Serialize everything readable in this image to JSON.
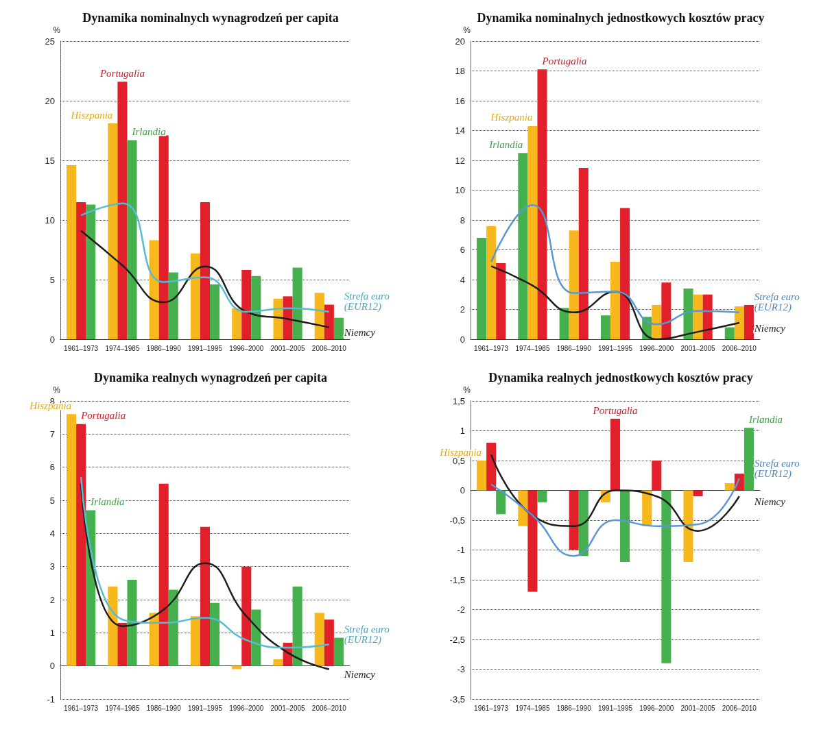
{
  "chart_data": [
    {
      "type": "bar",
      "title": "Dynamika nominalnych wynagrodzeń per capita",
      "ylabel": "%",
      "categories": [
        "1961–1973",
        "1974–1985",
        "1986–1990",
        "1991–1995",
        "1996–2000",
        "2001–2005",
        "2006–2010"
      ],
      "ylim": [
        0,
        25
      ],
      "yticks": [
        0,
        5,
        10,
        15,
        20,
        25
      ],
      "grid": "y",
      "legend": false,
      "series": [
        {
          "name": "Hiszpania",
          "color": "#f7b81e",
          "values": [
            14.6,
            18.1,
            8.3,
            7.2,
            2.6,
            3.4,
            3.9
          ]
        },
        {
          "name": "Portugalia",
          "color": "#e2202b",
          "values": [
            11.5,
            21.6,
            17.1,
            11.5,
            5.8,
            3.6,
            2.9
          ]
        },
        {
          "name": "Irlandia",
          "color": "#46b04f",
          "values": [
            11.3,
            16.7,
            5.6,
            4.6,
            5.3,
            6.0,
            1.8
          ]
        },
        {
          "name": "Niemcy",
          "type": "line",
          "color": "#1d1d1b",
          "values": [
            9.1,
            6.2,
            3.1,
            6.1,
            2.3,
            1.7,
            1.0
          ]
        },
        {
          "name": "Strefa euro (EUR12)",
          "type": "line",
          "color": "#55bcd6",
          "values": [
            10.4,
            11.4,
            4.8,
            5.2,
            2.3,
            2.6,
            2.3
          ]
        }
      ]
    },
    {
      "type": "bar",
      "title": "Dynamika nominalnych jednostkowych kosztów pracy",
      "ylabel": "%",
      "categories": [
        "1961–1973",
        "1974–1985",
        "1986–1990",
        "1991–1995",
        "1996–2000",
        "2001–2005",
        "2006–2010"
      ],
      "ylim": [
        0,
        20
      ],
      "yticks": [
        0,
        2,
        4,
        6,
        8,
        10,
        12,
        14,
        16,
        18,
        20
      ],
      "grid": "y",
      "legend": false,
      "series": [
        {
          "name": "Irlandia",
          "color": "#46b04f",
          "values": [
            6.8,
            12.5,
            2.1,
            1.6,
            1.5,
            3.4,
            0.8
          ]
        },
        {
          "name": "Hiszpania",
          "color": "#f7b81e",
          "values": [
            7.6,
            14.3,
            7.3,
            5.2,
            2.3,
            3.0,
            2.2
          ]
        },
        {
          "name": "Portugalia",
          "color": "#e2202b",
          "values": [
            5.1,
            18.1,
            11.5,
            8.8,
            3.8,
            3.0,
            2.3
          ]
        },
        {
          "name": "Niemcy",
          "type": "line",
          "color": "#1d1d1b",
          "values": [
            4.9,
            3.6,
            1.8,
            3.2,
            0.0,
            0.5,
            1.1
          ]
        },
        {
          "name": "Strefa euro (EUR12)",
          "type": "line",
          "color": "#5b97d2",
          "values": [
            5.2,
            9.0,
            3.1,
            3.2,
            1.0,
            1.9,
            1.8
          ]
        }
      ]
    },
    {
      "type": "bar",
      "title": "Dynamika realnych wynagrodzeń per capita",
      "ylabel": "%",
      "categories": [
        "1961–1973",
        "1974–1985",
        "1986–1990",
        "1991–1995",
        "1996–2000",
        "2001–2005",
        "2006–2010"
      ],
      "ylim": [
        -1,
        8
      ],
      "yticks": [
        -1,
        0,
        1,
        2,
        3,
        4,
        5,
        6,
        7,
        8
      ],
      "grid": "y",
      "legend": false,
      "series": [
        {
          "name": "Hiszpania",
          "color": "#f7b81e",
          "values": [
            7.6,
            2.4,
            1.6,
            1.5,
            -0.1,
            0.2,
            1.6
          ]
        },
        {
          "name": "Portugalia",
          "color": "#e2202b",
          "values": [
            7.3,
            1.3,
            5.5,
            4.2,
            3.0,
            0.7,
            1.4
          ]
        },
        {
          "name": "Irlandia",
          "color": "#46b04f",
          "values": [
            4.7,
            2.6,
            2.3,
            1.9,
            1.7,
            2.4,
            0.85
          ]
        },
        {
          "name": "Niemcy",
          "type": "line",
          "color": "#1d1d1b",
          "values": [
            5.5,
            1.2,
            1.7,
            3.1,
            1.5,
            0.4,
            -0.1
          ]
        },
        {
          "name": "Strefa euro (EUR12)",
          "type": "line",
          "color": "#55bcd6",
          "values": [
            5.7,
            1.4,
            1.3,
            1.45,
            0.78,
            0.55,
            0.65
          ]
        }
      ]
    },
    {
      "type": "bar",
      "title": "Dynamika realnych jednostkowych kosztów pracy",
      "ylabel": "%",
      "categories": [
        "1961–1973",
        "1974–1985",
        "1986–1990",
        "1991–1995",
        "1996–2000",
        "2001–2005",
        "2006–2010"
      ],
      "ylim": [
        -3.5,
        1.5
      ],
      "yticks": [
        {
          "value": -3.5,
          "label": "-3,5"
        },
        -3,
        {
          "value": -2.5,
          "label": "-2,5"
        },
        -2,
        {
          "value": -1.5,
          "label": "-1,5"
        },
        -1,
        {
          "value": -0.5,
          "label": "-0,5"
        },
        0,
        {
          "value": 0.5,
          "label": "0,5"
        },
        1,
        {
          "value": 1.5,
          "label": "1,5"
        }
      ],
      "grid": "y",
      "legend": false,
      "series": [
        {
          "name": "Hiszpania",
          "color": "#f7b81e",
          "values": [
            0.5,
            -0.6,
            0,
            -0.2,
            -0.6,
            -1.2,
            0.12
          ]
        },
        {
          "name": "Portugalia",
          "color": "#e2202b",
          "values": [
            0.8,
            -1.7,
            -1.0,
            1.2,
            0.5,
            -0.1,
            0.28
          ]
        },
        {
          "name": "Irlandia",
          "color": "#46b04f",
          "values": [
            -0.4,
            -0.2,
            -1.1,
            -1.2,
            -2.9,
            0,
            1.05
          ]
        },
        {
          "name": "Niemcy",
          "type": "line",
          "color": "#1d1d1b",
          "values": [
            0.6,
            -0.42,
            -0.6,
            0.0,
            -0.1,
            -0.68,
            -0.1
          ]
        },
        {
          "name": "Strefa euro (EUR12)",
          "type": "line",
          "color": "#5b97d2",
          "values": [
            0.1,
            -0.42,
            -1.1,
            -0.5,
            -0.6,
            -0.57,
            0.2
          ]
        }
      ]
    }
  ]
}
